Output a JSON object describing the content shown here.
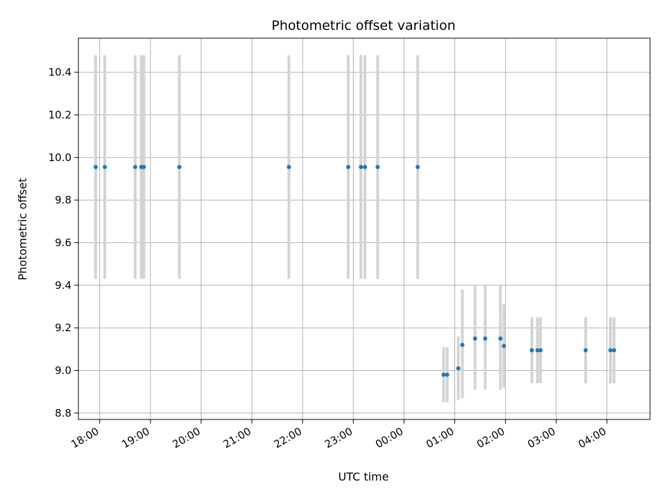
{
  "chart_data": {
    "type": "scatter",
    "title": "Photometric offset variation",
    "xlabel": "UTC time",
    "ylabel": "Photometric offset",
    "x_unit": "UTC time (hours, continuing past midnight)",
    "xlim": [
      17.58,
      28.85
    ],
    "ylim": [
      8.77,
      10.56
    ],
    "grid": true,
    "x_ticks": [
      {
        "value": 18,
        "label": "18:00"
      },
      {
        "value": 19,
        "label": "19:00"
      },
      {
        "value": 20,
        "label": "20:00"
      },
      {
        "value": 21,
        "label": "21:00"
      },
      {
        "value": 22,
        "label": "22:00"
      },
      {
        "value": 23,
        "label": "23:00"
      },
      {
        "value": 24,
        "label": "00:00"
      },
      {
        "value": 25,
        "label": "01:00"
      },
      {
        "value": 26,
        "label": "02:00"
      },
      {
        "value": 27,
        "label": "03:00"
      },
      {
        "value": 28,
        "label": "04:00"
      }
    ],
    "y_ticks": [
      8.8,
      9.0,
      9.2,
      9.4,
      9.6,
      9.8,
      10.0,
      10.2,
      10.4
    ],
    "point_color": "#1f77b4",
    "errorbar_color": "#d3d3d3",
    "points": [
      {
        "x": 17.92,
        "y": 9.955,
        "err_low": 9.43,
        "err_high": 10.48
      },
      {
        "x": 18.1,
        "y": 9.955,
        "err_low": 9.43,
        "err_high": 10.48
      },
      {
        "x": 18.7,
        "y": 9.955,
        "err_low": 9.43,
        "err_high": 10.48
      },
      {
        "x": 18.82,
        "y": 9.955,
        "err_low": 9.43,
        "err_high": 10.48
      },
      {
        "x": 18.87,
        "y": 9.955,
        "err_low": 9.43,
        "err_high": 10.48
      },
      {
        "x": 19.57,
        "y": 9.955,
        "err_low": 9.43,
        "err_high": 10.48
      },
      {
        "x": 21.73,
        "y": 9.955,
        "err_low": 9.43,
        "err_high": 10.48
      },
      {
        "x": 22.9,
        "y": 9.955,
        "err_low": 9.43,
        "err_high": 10.48
      },
      {
        "x": 23.15,
        "y": 9.955,
        "err_low": 9.43,
        "err_high": 10.48
      },
      {
        "x": 23.23,
        "y": 9.955,
        "err_low": 9.43,
        "err_high": 10.48
      },
      {
        "x": 23.48,
        "y": 9.955,
        "err_low": 9.43,
        "err_high": 10.48
      },
      {
        "x": 24.27,
        "y": 9.955,
        "err_low": 9.43,
        "err_high": 10.48
      },
      {
        "x": 24.78,
        "y": 8.98,
        "err_low": 8.85,
        "err_high": 9.11
      },
      {
        "x": 24.85,
        "y": 8.98,
        "err_low": 8.85,
        "err_high": 9.11
      },
      {
        "x": 25.07,
        "y": 9.01,
        "err_low": 8.86,
        "err_high": 9.16
      },
      {
        "x": 25.15,
        "y": 9.12,
        "err_low": 8.87,
        "err_high": 9.38
      },
      {
        "x": 25.4,
        "y": 9.15,
        "err_low": 8.91,
        "err_high": 9.4
      },
      {
        "x": 25.6,
        "y": 9.15,
        "err_low": 8.91,
        "err_high": 9.4
      },
      {
        "x": 25.9,
        "y": 9.15,
        "err_low": 8.91,
        "err_high": 9.4
      },
      {
        "x": 25.97,
        "y": 9.115,
        "err_low": 8.92,
        "err_high": 9.31
      },
      {
        "x": 26.52,
        "y": 9.095,
        "err_low": 8.94,
        "err_high": 9.25
      },
      {
        "x": 26.63,
        "y": 9.095,
        "err_low": 8.94,
        "err_high": 9.25
      },
      {
        "x": 26.69,
        "y": 9.095,
        "err_low": 8.94,
        "err_high": 9.25
      },
      {
        "x": 27.58,
        "y": 9.095,
        "err_low": 8.94,
        "err_high": 9.25
      },
      {
        "x": 28.07,
        "y": 9.095,
        "err_low": 8.94,
        "err_high": 9.25
      },
      {
        "x": 28.14,
        "y": 9.095,
        "err_low": 8.94,
        "err_high": 9.25
      }
    ]
  }
}
